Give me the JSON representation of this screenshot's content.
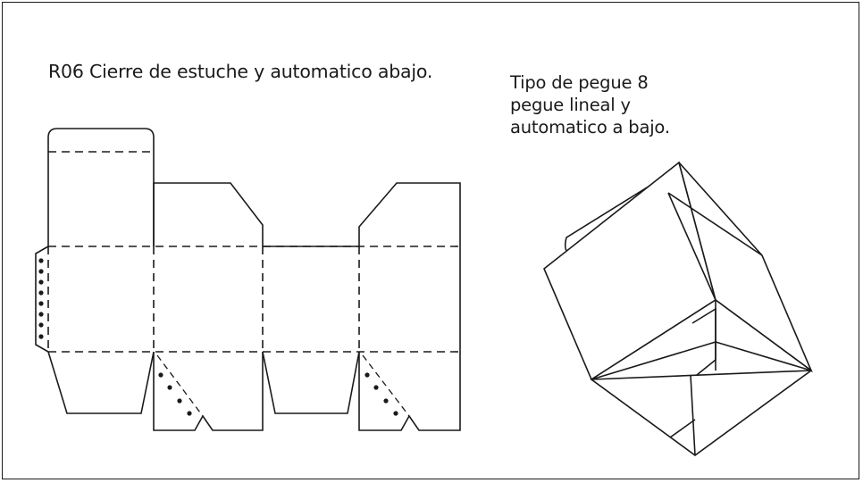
{
  "diagram": {
    "title": "R06 Cierre de estuche y automatico abajo.",
    "caption_lines": [
      "Tipo de pegue 8",
      "pegue lineal y",
      "automatico a bajo."
    ]
  }
}
